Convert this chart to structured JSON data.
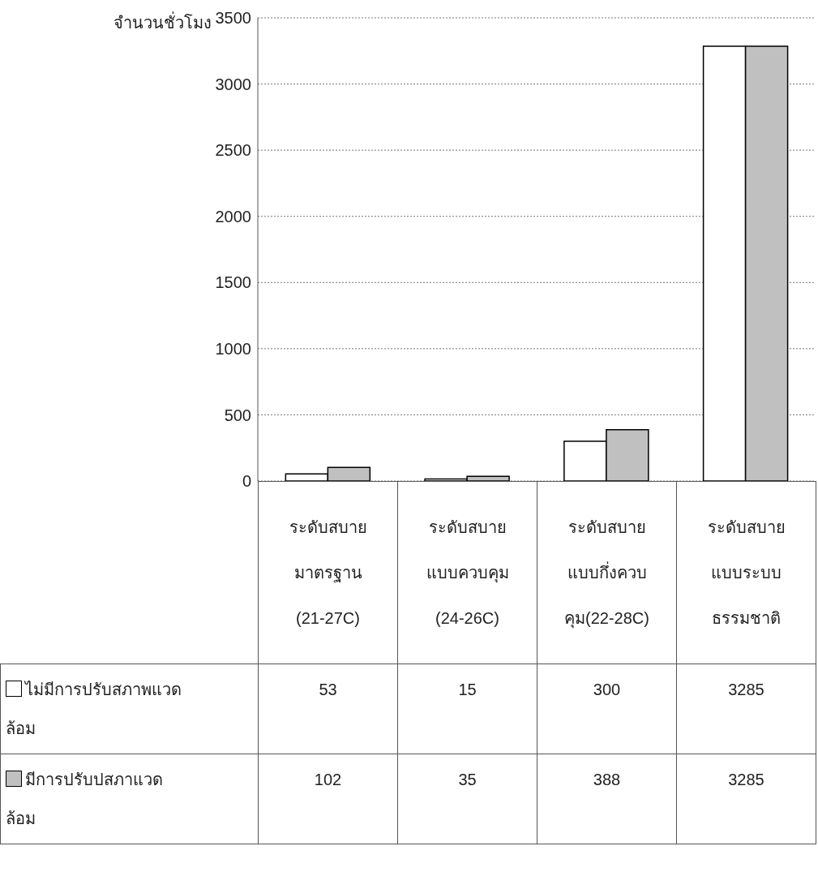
{
  "chart_data": {
    "type": "bar",
    "ylabel": "จำนวนชั่วโมง",
    "categories": [
      "ระดับสบาย มาตรฐาน (21-27C)",
      "ระดับสบาย แบบควบคุม (24-26C)",
      "ระดับสบาย แบบกึ่งควบ คุม(22-28C)",
      "ระดับสบาย แบบระบบ ธรรมชาติ"
    ],
    "series": [
      {
        "name": "ไม่มีการปรับสภาพแวด ล้อม",
        "color": "#ffffff",
        "values": [
          53,
          15,
          300,
          3285
        ]
      },
      {
        "name": "มีการปรับปสภาแวด ล้อม",
        "color": "#c0c0c0",
        "values": [
          102,
          35,
          388,
          3285
        ]
      }
    ],
    "ylim": [
      0,
      3500
    ],
    "yticks": [
      0,
      500,
      1000,
      1500,
      2000,
      2500,
      3000,
      3500
    ],
    "grid": "y",
    "data_labels": true
  }
}
